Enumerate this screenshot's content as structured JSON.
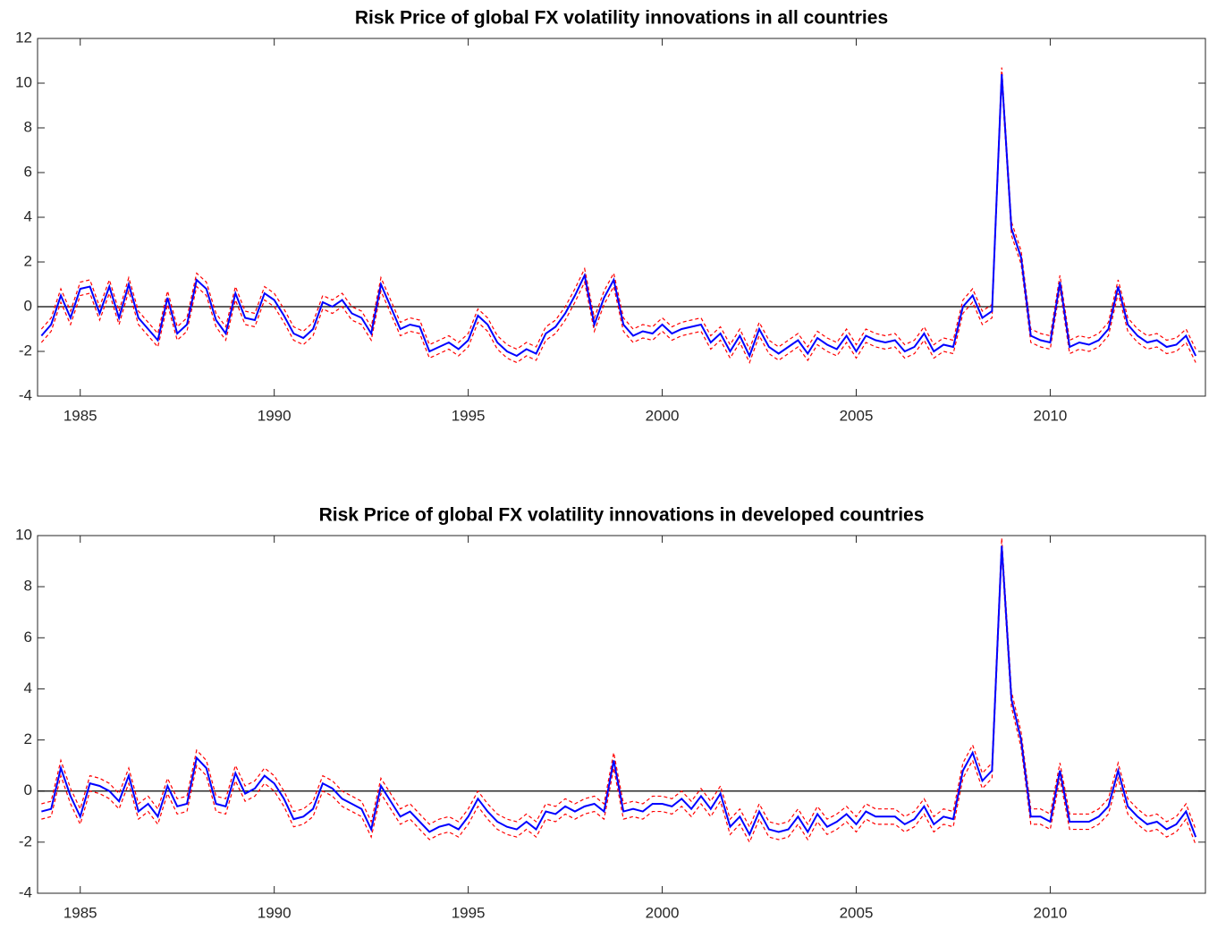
{
  "chart_data": [
    {
      "type": "line",
      "title": "Risk Price of global FX volatility innovations in all countries",
      "x": [
        1984,
        1984.25,
        1984.5,
        1984.75,
        1985,
        1985.25,
        1985.5,
        1985.75,
        1986,
        1986.25,
        1986.5,
        1986.75,
        1987,
        1987.25,
        1987.5,
        1987.75,
        1988,
        1988.25,
        1988.5,
        1988.75,
        1989,
        1989.25,
        1989.5,
        1989.75,
        1990,
        1990.25,
        1990.5,
        1990.75,
        1991,
        1991.25,
        1991.5,
        1991.75,
        1992,
        1992.25,
        1992.5,
        1992.75,
        1993,
        1993.25,
        1993.5,
        1993.75,
        1994,
        1994.25,
        1994.5,
        1994.75,
        1995,
        1995.25,
        1995.5,
        1995.75,
        1996,
        1996.25,
        1996.5,
        1996.75,
        1997,
        1997.25,
        1997.5,
        1997.75,
        1998,
        1998.25,
        1998.5,
        1998.75,
        1999,
        1999.25,
        1999.5,
        1999.75,
        2000,
        2000.25,
        2000.5,
        2000.75,
        2001,
        2001.25,
        2001.5,
        2001.75,
        2002,
        2002.25,
        2002.5,
        2002.75,
        2003,
        2003.25,
        2003.5,
        2003.75,
        2004,
        2004.25,
        2004.5,
        2004.75,
        2005,
        2005.25,
        2005.5,
        2005.75,
        2006,
        2006.25,
        2006.5,
        2006.75,
        2007,
        2007.25,
        2007.5,
        2007.75,
        2008,
        2008.25,
        2008.5,
        2008.75,
        2009,
        2009.25,
        2009.5,
        2009.75,
        2010,
        2010.25,
        2010.5,
        2010.75,
        2011,
        2011.25,
        2011.5,
        2011.75,
        2012,
        2012.25,
        2012.5,
        2012.75,
        2013,
        2013.25,
        2013.5,
        2013.75
      ],
      "series": [
        {
          "color": "#ff0000",
          "style": "dashed",
          "values": [
            -1.0,
            -0.5,
            0.8,
            -0.2,
            1.1,
            1.2,
            0.0,
            1.2,
            -0.2,
            1.3,
            -0.2,
            -0.7,
            -1.2,
            0.7,
            -0.9,
            -0.5,
            1.5,
            1.1,
            -0.3,
            -0.9,
            0.9,
            -0.2,
            -0.3,
            0.9,
            0.6,
            -0.1,
            -0.9,
            -1.1,
            -0.7,
            0.5,
            0.3,
            0.6,
            0.0,
            -0.2,
            -0.9,
            1.3,
            0.3,
            -0.7,
            -0.5,
            -0.6,
            -1.7,
            -1.5,
            -1.3,
            -1.6,
            -1.2,
            -0.1,
            -0.5,
            -1.3,
            -1.7,
            -1.9,
            -1.6,
            -1.8,
            -0.9,
            -0.6,
            0.0,
            0.8,
            1.7,
            -0.5,
            0.7,
            1.5,
            -0.5,
            -1.0,
            -0.8,
            -0.9,
            -0.5,
            -0.9,
            -0.7,
            -0.6,
            -0.5,
            -1.3,
            -0.9,
            -1.7,
            -1.0,
            -1.9,
            -0.7,
            -1.5,
            -1.8,
            -1.5,
            -1.2,
            -1.8,
            -1.1,
            -1.4,
            -1.6,
            -1.0,
            -1.7,
            -1.0,
            -1.2,
            -1.3,
            -1.2,
            -1.7,
            -1.5,
            -0.9,
            -1.7,
            -1.4,
            -1.5,
            0.3,
            0.8,
            -0.2,
            0.1,
            10.7,
            3.8,
            2.5,
            -1.0,
            -1.2,
            -1.3,
            1.4,
            -1.5,
            -1.3,
            -1.4,
            -1.2,
            -0.7,
            1.2,
            -0.5,
            -1.0,
            -1.3,
            -1.2,
            -1.5,
            -1.4,
            -1.0,
            -1.9
          ]
        },
        {
          "color": "#ff0000",
          "style": "dashed",
          "values": [
            -1.6,
            -1.1,
            0.2,
            -0.8,
            0.5,
            0.6,
            -0.6,
            0.6,
            -0.8,
            0.7,
            -0.8,
            -1.3,
            -1.8,
            0.1,
            -1.5,
            -1.1,
            0.9,
            0.5,
            -0.9,
            -1.5,
            0.3,
            -0.8,
            -0.9,
            0.3,
            0.0,
            -0.7,
            -1.5,
            -1.7,
            -1.3,
            -0.1,
            -0.3,
            0.0,
            -0.6,
            -0.8,
            -1.5,
            0.7,
            -0.3,
            -1.3,
            -1.1,
            -1.2,
            -2.3,
            -2.1,
            -1.9,
            -2.2,
            -1.8,
            -0.7,
            -1.1,
            -1.9,
            -2.3,
            -2.5,
            -2.2,
            -2.4,
            -1.5,
            -1.2,
            -0.6,
            0.2,
            1.1,
            -1.1,
            0.1,
            0.9,
            -1.1,
            -1.6,
            -1.4,
            -1.5,
            -1.1,
            -1.5,
            -1.3,
            -1.2,
            -1.1,
            -1.9,
            -1.5,
            -2.3,
            -1.6,
            -2.5,
            -1.3,
            -2.1,
            -2.4,
            -2.1,
            -1.8,
            -2.4,
            -1.7,
            -2.0,
            -2.2,
            -1.6,
            -2.3,
            -1.6,
            -1.8,
            -1.9,
            -1.8,
            -2.3,
            -2.1,
            -1.5,
            -2.3,
            -2.0,
            -2.1,
            -0.3,
            0.2,
            -0.8,
            -0.5,
            10.1,
            3.2,
            1.9,
            -1.6,
            -1.8,
            -1.9,
            0.8,
            -2.1,
            -1.9,
            -2.0,
            -1.8,
            -1.3,
            0.6,
            -1.1,
            -1.6,
            -1.9,
            -1.8,
            -2.1,
            -2.0,
            -1.6,
            -2.5
          ]
        },
        {
          "color": "#0000ff",
          "style": "solid",
          "values": [
            -1.3,
            -0.8,
            0.5,
            -0.5,
            0.8,
            0.9,
            -0.3,
            0.9,
            -0.5,
            1.0,
            -0.5,
            -1.0,
            -1.5,
            0.4,
            -1.2,
            -0.8,
            1.2,
            0.8,
            -0.6,
            -1.2,
            0.6,
            -0.5,
            -0.6,
            0.6,
            0.3,
            -0.4,
            -1.2,
            -1.4,
            -1.0,
            0.2,
            0.0,
            0.3,
            -0.3,
            -0.5,
            -1.2,
            1.0,
            0.0,
            -1.0,
            -0.8,
            -0.9,
            -2.0,
            -1.8,
            -1.6,
            -1.9,
            -1.5,
            -0.4,
            -0.8,
            -1.6,
            -2.0,
            -2.2,
            -1.9,
            -2.1,
            -1.2,
            -0.9,
            -0.3,
            0.5,
            1.4,
            -0.8,
            0.4,
            1.2,
            -0.8,
            -1.3,
            -1.1,
            -1.2,
            -0.8,
            -1.2,
            -1.0,
            -0.9,
            -0.8,
            -1.6,
            -1.2,
            -2.0,
            -1.3,
            -2.2,
            -1.0,
            -1.8,
            -2.1,
            -1.8,
            -1.5,
            -2.1,
            -1.4,
            -1.7,
            -1.9,
            -1.3,
            -2.0,
            -1.3,
            -1.5,
            -1.6,
            -1.5,
            -2.0,
            -1.8,
            -1.2,
            -2.0,
            -1.7,
            -1.8,
            0.0,
            0.5,
            -0.5,
            -0.2,
            10.4,
            3.5,
            2.2,
            -1.3,
            -1.5,
            -1.6,
            1.1,
            -1.8,
            -1.6,
            -1.7,
            -1.5,
            -1.0,
            0.9,
            -0.8,
            -1.3,
            -1.6,
            -1.5,
            -1.8,
            -1.7,
            -1.3,
            -2.2
          ]
        }
      ],
      "xlim": [
        1983.9,
        2014
      ],
      "xticks": [
        1985,
        1990,
        1995,
        2000,
        2005,
        2010
      ],
      "ylim": [
        -4,
        12
      ],
      "yticks": [
        -4,
        -2,
        0,
        2,
        4,
        6,
        8,
        10,
        12
      ],
      "hline": 0
    },
    {
      "type": "line",
      "title": "Risk Price of global FX volatility innovations in developed countries",
      "x": [
        1984,
        1984.25,
        1984.5,
        1984.75,
        1985,
        1985.25,
        1985.5,
        1985.75,
        1986,
        1986.25,
        1986.5,
        1986.75,
        1987,
        1987.25,
        1987.5,
        1987.75,
        1988,
        1988.25,
        1988.5,
        1988.75,
        1989,
        1989.25,
        1989.5,
        1989.75,
        1990,
        1990.25,
        1990.5,
        1990.75,
        1991,
        1991.25,
        1991.5,
        1991.75,
        1992,
        1992.25,
        1992.5,
        1992.75,
        1993,
        1993.25,
        1993.5,
        1993.75,
        1994,
        1994.25,
        1994.5,
        1994.75,
        1995,
        1995.25,
        1995.5,
        1995.75,
        1996,
        1996.25,
        1996.5,
        1996.75,
        1997,
        1997.25,
        1997.5,
        1997.75,
        1998,
        1998.25,
        1998.5,
        1998.75,
        1999,
        1999.25,
        1999.5,
        1999.75,
        2000,
        2000.25,
        2000.5,
        2000.75,
        2001,
        2001.25,
        2001.5,
        2001.75,
        2002,
        2002.25,
        2002.5,
        2002.75,
        2003,
        2003.25,
        2003.5,
        2003.75,
        2004,
        2004.25,
        2004.5,
        2004.75,
        2005,
        2005.25,
        2005.5,
        2005.75,
        2006,
        2006.25,
        2006.5,
        2006.75,
        2007,
        2007.25,
        2007.5,
        2007.75,
        2008,
        2008.25,
        2008.5,
        2008.75,
        2009,
        2009.25,
        2009.5,
        2009.75,
        2010,
        2010.25,
        2010.5,
        2010.75,
        2011,
        2011.25,
        2011.5,
        2011.75,
        2012,
        2012.25,
        2012.5,
        2012.75,
        2013,
        2013.25,
        2013.5,
        2013.75
      ],
      "series": [
        {
          "color": "#ff0000",
          "style": "dashed",
          "values": [
            -0.5,
            -0.4,
            1.2,
            0.1,
            -0.7,
            0.6,
            0.5,
            0.3,
            -0.1,
            0.9,
            -0.5,
            -0.2,
            -0.7,
            0.5,
            -0.3,
            -0.2,
            1.6,
            1.2,
            -0.2,
            -0.3,
            1.0,
            0.2,
            0.4,
            0.9,
            0.6,
            0.0,
            -0.8,
            -0.7,
            -0.4,
            0.6,
            0.4,
            0.0,
            -0.2,
            -0.4,
            -1.2,
            0.5,
            -0.1,
            -0.7,
            -0.5,
            -0.9,
            -1.3,
            -1.1,
            -1.0,
            -1.2,
            -0.7,
            0.0,
            -0.5,
            -0.9,
            -1.1,
            -1.2,
            -0.9,
            -1.2,
            -0.5,
            -0.6,
            -0.3,
            -0.5,
            -0.3,
            -0.2,
            -0.5,
            1.5,
            -0.5,
            -0.4,
            -0.5,
            -0.2,
            -0.2,
            -0.3,
            0.0,
            -0.4,
            0.1,
            -0.4,
            0.2,
            -1.1,
            -0.7,
            -1.4,
            -0.5,
            -1.2,
            -1.3,
            -1.2,
            -0.7,
            -1.3,
            -0.6,
            -1.1,
            -0.9,
            -0.6,
            -1.0,
            -0.5,
            -0.7,
            -0.7,
            -0.7,
            -1.0,
            -0.8,
            -0.3,
            -1.0,
            -0.7,
            -0.8,
            1.1,
            1.8,
            0.7,
            1.1,
            9.9,
            3.9,
            2.3,
            -0.7,
            -0.7,
            -0.9,
            1.1,
            -0.9,
            -0.9,
            -0.9,
            -0.7,
            -0.3,
            1.1,
            -0.3,
            -0.7,
            -1.0,
            -0.9,
            -1.2,
            -1.0,
            -0.5,
            -1.5
          ]
        },
        {
          "color": "#ff0000",
          "style": "dashed",
          "values": [
            -1.1,
            -1.0,
            0.6,
            -0.5,
            -1.3,
            0.0,
            -0.1,
            -0.3,
            -0.7,
            0.3,
            -1.1,
            -0.8,
            -1.3,
            -0.1,
            -0.9,
            -0.8,
            1.0,
            0.6,
            -0.8,
            -0.9,
            0.4,
            -0.4,
            -0.2,
            0.3,
            0.0,
            -0.6,
            -1.4,
            -1.3,
            -1.0,
            0.0,
            -0.2,
            -0.6,
            -0.8,
            -1.0,
            -1.8,
            -0.1,
            -0.7,
            -1.3,
            -1.1,
            -1.5,
            -1.9,
            -1.7,
            -1.6,
            -1.8,
            -1.3,
            -0.6,
            -1.1,
            -1.5,
            -1.7,
            -1.8,
            -1.5,
            -1.8,
            -1.1,
            -1.2,
            -0.9,
            -1.1,
            -0.9,
            -0.8,
            -1.1,
            0.9,
            -1.1,
            -1.0,
            -1.1,
            -0.8,
            -0.8,
            -0.9,
            -0.6,
            -1.0,
            -0.5,
            -1.0,
            -0.4,
            -1.7,
            -1.3,
            -2.0,
            -1.1,
            -1.8,
            -1.9,
            -1.8,
            -1.3,
            -1.9,
            -1.2,
            -1.7,
            -1.5,
            -1.2,
            -1.6,
            -1.1,
            -1.3,
            -1.3,
            -1.3,
            -1.6,
            -1.4,
            -0.9,
            -1.6,
            -1.3,
            -1.4,
            0.5,
            1.2,
            0.1,
            0.5,
            9.3,
            3.3,
            1.7,
            -1.3,
            -1.3,
            -1.5,
            0.5,
            -1.5,
            -1.5,
            -1.5,
            -1.3,
            -0.9,
            0.5,
            -0.9,
            -1.3,
            -1.6,
            -1.5,
            -1.8,
            -1.6,
            -1.1,
            -2.1
          ]
        },
        {
          "color": "#0000ff",
          "style": "solid",
          "values": [
            -0.8,
            -0.7,
            0.9,
            -0.2,
            -1.0,
            0.3,
            0.2,
            0.0,
            -0.4,
            0.6,
            -0.8,
            -0.5,
            -1.0,
            0.2,
            -0.6,
            -0.5,
            1.3,
            0.9,
            -0.5,
            -0.6,
            0.7,
            -0.1,
            0.1,
            0.6,
            0.3,
            -0.3,
            -1.1,
            -1.0,
            -0.7,
            0.3,
            0.1,
            -0.3,
            -0.5,
            -0.7,
            -1.5,
            0.2,
            -0.4,
            -1.0,
            -0.8,
            -1.2,
            -1.6,
            -1.4,
            -1.3,
            -1.5,
            -1.0,
            -0.3,
            -0.8,
            -1.2,
            -1.4,
            -1.5,
            -1.2,
            -1.5,
            -0.8,
            -0.9,
            -0.6,
            -0.8,
            -0.6,
            -0.5,
            -0.8,
            1.2,
            -0.8,
            -0.7,
            -0.8,
            -0.5,
            -0.5,
            -0.6,
            -0.3,
            -0.7,
            -0.2,
            -0.7,
            -0.1,
            -1.4,
            -1.0,
            -1.7,
            -0.8,
            -1.5,
            -1.6,
            -1.5,
            -1.0,
            -1.6,
            -0.9,
            -1.4,
            -1.2,
            -0.9,
            -1.3,
            -0.8,
            -1.0,
            -1.0,
            -1.0,
            -1.3,
            -1.1,
            -0.6,
            -1.3,
            -1.0,
            -1.1,
            0.8,
            1.5,
            0.4,
            0.8,
            9.6,
            3.6,
            2.0,
            -1.0,
            -1.0,
            -1.2,
            0.8,
            -1.2,
            -1.2,
            -1.2,
            -1.0,
            -0.6,
            0.8,
            -0.6,
            -1.0,
            -1.3,
            -1.2,
            -1.5,
            -1.3,
            -0.8,
            -1.8
          ]
        }
      ],
      "xlim": [
        1983.9,
        2014
      ],
      "xticks": [
        1985,
        1990,
        1995,
        2000,
        2005,
        2010
      ],
      "ylim": [
        -4,
        10
      ],
      "yticks": [
        -4,
        -2,
        0,
        2,
        4,
        6,
        8,
        10
      ],
      "hline": 0
    }
  ]
}
